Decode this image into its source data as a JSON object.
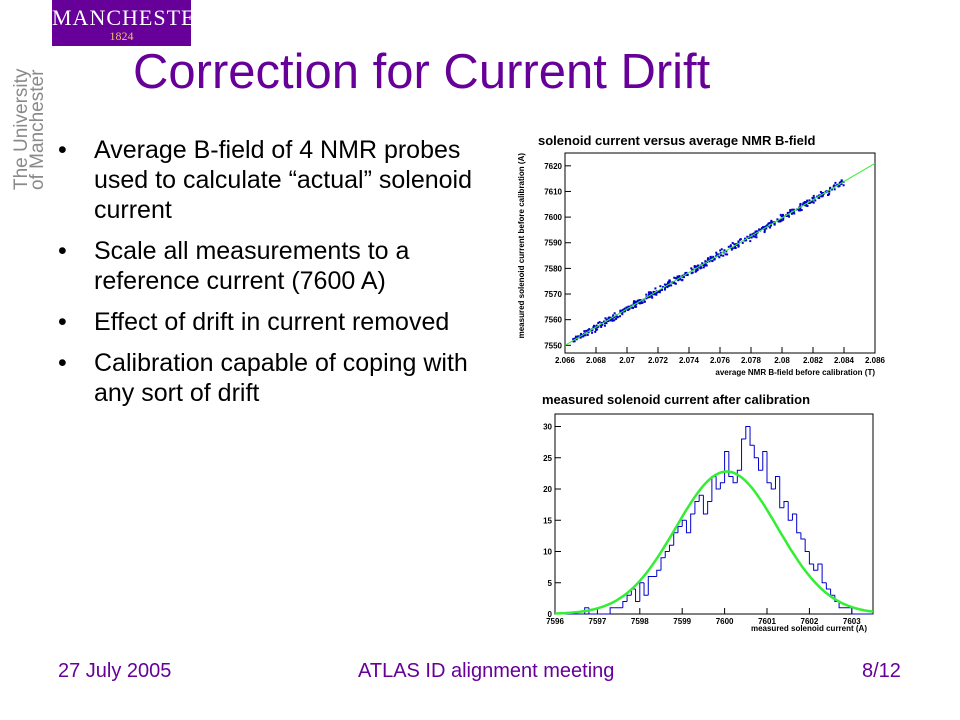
{
  "logo": {
    "name": "MANCHESTER",
    "year": "1824",
    "side_lines": [
      "The University",
      "of Manchester"
    ]
  },
  "slide": {
    "title": "Correction for Current Drift",
    "bullets": [
      "Average B-field of 4 NMR probes used to calculate “actual” solenoid current",
      "Scale all measurements to a reference current (7600 A)",
      "Effect of drift in current removed",
      "Calibration capable of coping with any sort of drift"
    ]
  },
  "footer": {
    "date": "27 July 2005",
    "meeting": "ATLAS ID alignment meeting",
    "page": "8/12"
  },
  "colors": {
    "brand": "#660099",
    "points": "#0000cc",
    "fit": "#33ee33"
  },
  "chart_data": [
    {
      "type": "scatter",
      "title": "solenoid current versus average NMR B-field",
      "xlabel": "average NMR B-field before calibration (T)",
      "ylabel": "measured solenoid current before calibration (A)",
      "xlim": [
        2.066,
        2.086
      ],
      "ylim": [
        7547,
        7625
      ],
      "x_ticks": [
        "2.066",
        "2.068",
        "2.07",
        "2.072",
        "2.074",
        "2.076",
        "2.078",
        "2.08",
        "2.082",
        "2.084",
        "2.086"
      ],
      "y_ticks": [
        "7550",
        "7560",
        "7570",
        "7580",
        "7590",
        "7600",
        "7610",
        "7620"
      ],
      "fit_line": [
        [
          2.066,
          7550
        ],
        [
          2.086,
          7621
        ]
      ],
      "grid": false
    },
    {
      "type": "bar",
      "title": "measured solenoid current after calibration",
      "xlabel": "measured solenoid current (A)",
      "xlim": [
        7596,
        7603.5
      ],
      "ylim": [
        0,
        32
      ],
      "x_ticks": [
        "7596",
        "7597",
        "7598",
        "7599",
        "7600",
        "7601",
        "7602",
        "7603"
      ],
      "y_ticks": [
        "0",
        "5",
        "10",
        "15",
        "20",
        "25",
        "30"
      ],
      "bin_width": 0.1,
      "values": [
        0,
        0,
        0,
        0,
        0,
        0,
        0,
        1,
        0,
        0,
        0,
        0,
        0,
        1,
        1,
        1,
        2,
        3,
        4,
        2,
        5,
        3,
        6,
        6,
        7,
        9,
        10,
        11,
        13,
        14,
        15,
        13,
        16,
        18,
        19,
        16,
        18,
        22,
        20,
        21,
        26,
        22,
        21,
        23,
        28,
        30,
        27,
        25,
        23,
        26,
        21,
        20,
        22,
        17,
        18,
        15,
        16,
        13,
        12,
        10,
        8,
        7,
        8,
        5,
        4,
        3,
        2,
        1,
        1,
        1,
        0,
        0,
        0,
        0,
        0
      ],
      "fit": {
        "type": "gaussian",
        "amplitude": 22.8,
        "mean": 7600.05,
        "sigma": 1.2
      },
      "grid": false
    }
  ]
}
